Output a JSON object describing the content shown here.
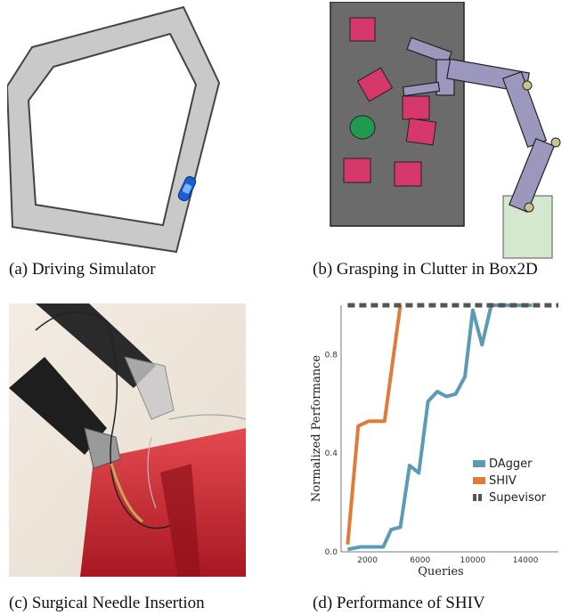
{
  "captions": {
    "a": "(a) Driving Simulator",
    "b": "(b) Grasping in Clutter in Box2D",
    "c": "(c) Surgical Needle Insertion",
    "d": "(d) Performance of SHIV"
  },
  "chart_data": {
    "type": "line",
    "xlabel": "Queries",
    "ylabel": "Normalized Performance",
    "xlim": [
      0,
      16500
    ],
    "ylim": [
      0,
      1.0
    ],
    "xticks": [
      2000,
      6000,
      10000,
      14000
    ],
    "xtick_labels": [
      "2000",
      "6000",
      "10000",
      "14000"
    ],
    "yticks": [
      0.0,
      0.4,
      0.8
    ],
    "ytick_labels": [
      "0.0",
      "0.4",
      "0.8"
    ],
    "legend_position": "right",
    "series": [
      {
        "name": "DAgger",
        "color": "#5b9bb5",
        "x": [
          500,
          1500,
          2500,
          3200,
          3800,
          4500,
          5200,
          5900,
          6600,
          7300,
          8000,
          8700,
          9400,
          10000,
          10700,
          11400,
          12300,
          13000,
          13800,
          14500
        ],
        "y": [
          0.01,
          0.02,
          0.02,
          0.02,
          0.09,
          0.1,
          0.35,
          0.32,
          0.61,
          0.65,
          0.63,
          0.64,
          0.71,
          0.98,
          0.84,
          1.0,
          1.0,
          1.0,
          1.0,
          1.0
        ]
      },
      {
        "name": "SHIV",
        "color": "#e07b39",
        "x": [
          500,
          1300,
          2100,
          2800,
          3300,
          4500
        ],
        "y": [
          0.03,
          0.51,
          0.53,
          0.53,
          0.53,
          1.0
        ]
      },
      {
        "name": "Supevisor",
        "color": "#555555",
        "dashed": true,
        "x": [
          500,
          16500
        ],
        "y": [
          1.0,
          1.0
        ]
      }
    ]
  }
}
